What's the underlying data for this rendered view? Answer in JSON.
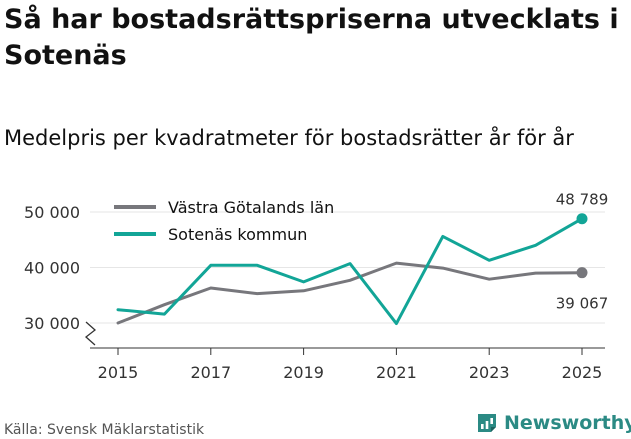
{
  "header": {
    "title": "Så har bostadsrättspriserna utvecklats i Sotenäs",
    "subtitle": "Medelpris per kvadratmeter för bostadsrätter år för år"
  },
  "footer": {
    "source": "Källa: Svensk Mäklarstatistik",
    "brand": "Newsworthy"
  },
  "colors": {
    "region": "#77777c",
    "municipality": "#12a597",
    "grid": "#e6e6e6",
    "axis": "#333333",
    "brand": "#2b8a84"
  },
  "chart_data": {
    "type": "line",
    "title": "Så har bostadsrättspriserna utvecklats i Sotenäs",
    "subtitle": "Medelpris per kvadratmeter för bostadsrätter år för år",
    "xlabel": "",
    "ylabel": "",
    "x": [
      2015,
      2016,
      2017,
      2018,
      2019,
      2020,
      2021,
      2022,
      2023,
      2024,
      2025
    ],
    "x_ticks": [
      2015,
      2017,
      2019,
      2021,
      2023,
      2025
    ],
    "y_ticks": [
      30000,
      40000,
      50000
    ],
    "y_tick_labels": [
      "30 000",
      "40 000",
      "50 000"
    ],
    "ylim": [
      28000,
      52000
    ],
    "axis_break": true,
    "grid": true,
    "legend_position": "top-left",
    "series": [
      {
        "name": "Västra Götalands län",
        "color": "#77777c",
        "values": [
          30000,
          33300,
          36300,
          35300,
          35800,
          37700,
          40800,
          39900,
          37900,
          39000,
          39067
        ],
        "end_label": "39 067"
      },
      {
        "name": "Sotenäs kommun",
        "color": "#12a597",
        "values": [
          32400,
          31600,
          40400,
          40400,
          37400,
          40700,
          29900,
          45600,
          41300,
          44000,
          48789
        ],
        "end_label": "48 789"
      }
    ]
  }
}
